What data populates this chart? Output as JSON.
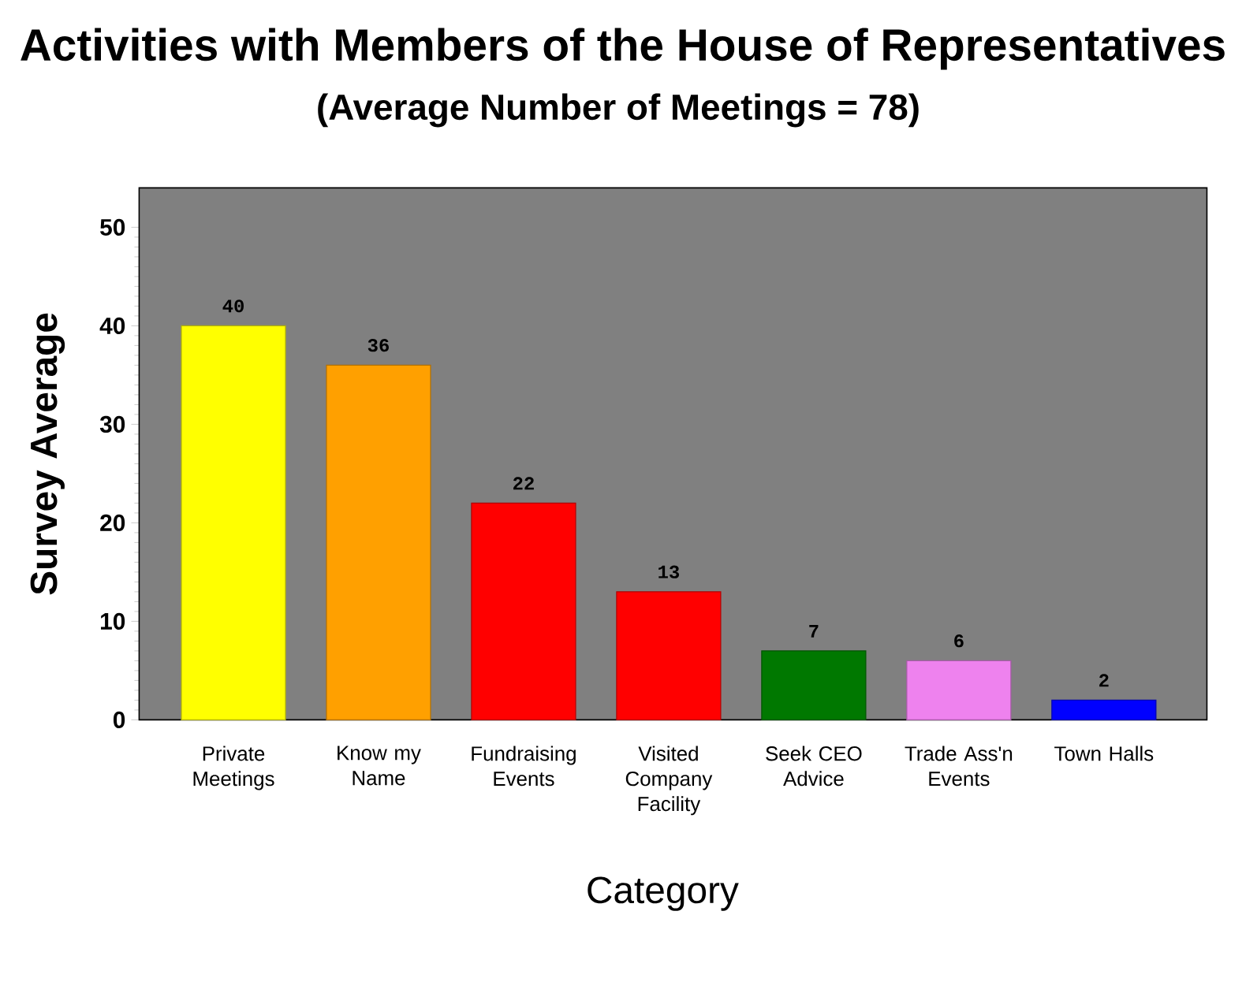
{
  "chart_data": {
    "type": "bar",
    "title": "Activities with Members of the House of Representatives",
    "subtitle": "(Average Number of Meetings = 78)",
    "xlabel": "Category",
    "ylabel": "Survey Average",
    "categories": [
      "Private Meetings",
      "Know my Name",
      "Fundraising Events",
      "Visited Company Facility",
      "Seek CEO Advice",
      "Trade Ass'n Events",
      "Town Halls"
    ],
    "values": [
      40,
      36,
      22,
      13,
      7,
      6,
      2
    ],
    "colors": [
      "#ffff00",
      "#ffa000",
      "#ff0000",
      "#ff0000",
      "#007800",
      "#ee82ee",
      "#0000ff"
    ],
    "ylim": [
      0,
      54
    ],
    "yticks": [
      0,
      10,
      20,
      30,
      40,
      50
    ],
    "data_labels": true
  }
}
